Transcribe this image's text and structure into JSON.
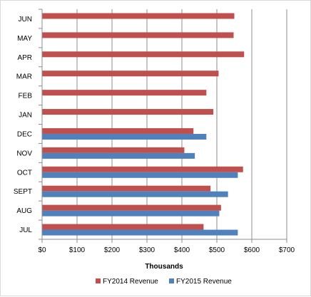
{
  "chart_data": {
    "type": "bar",
    "orientation": "horizontal",
    "categories": [
      "JUL",
      "AUG",
      "SEPT",
      "OCT",
      "NOV",
      "DEC",
      "JAN",
      "FEB",
      "MAR",
      "APR",
      "MAY",
      "JUN"
    ],
    "series": [
      {
        "name": "FY2014 Revenue",
        "color": "#c0504d",
        "values": [
          462,
          512,
          482,
          575,
          407,
          433,
          490,
          470,
          505,
          578,
          548,
          550
        ]
      },
      {
        "name": "FY2015 Revenue",
        "color": "#4f81bd",
        "values": [
          560,
          507,
          532,
          560,
          437,
          470,
          null,
          null,
          null,
          null,
          null,
          null
        ]
      }
    ],
    "xlabel": "Thousands",
    "xlim": [
      0,
      700
    ],
    "xticks": [
      0,
      100,
      200,
      300,
      400,
      500,
      600,
      700
    ],
    "xtick_labels": [
      "$0",
      "$100",
      "$200",
      "$300",
      "$400",
      "$500",
      "$600",
      "$700"
    ],
    "grid": true,
    "legend_position": "bottom"
  }
}
